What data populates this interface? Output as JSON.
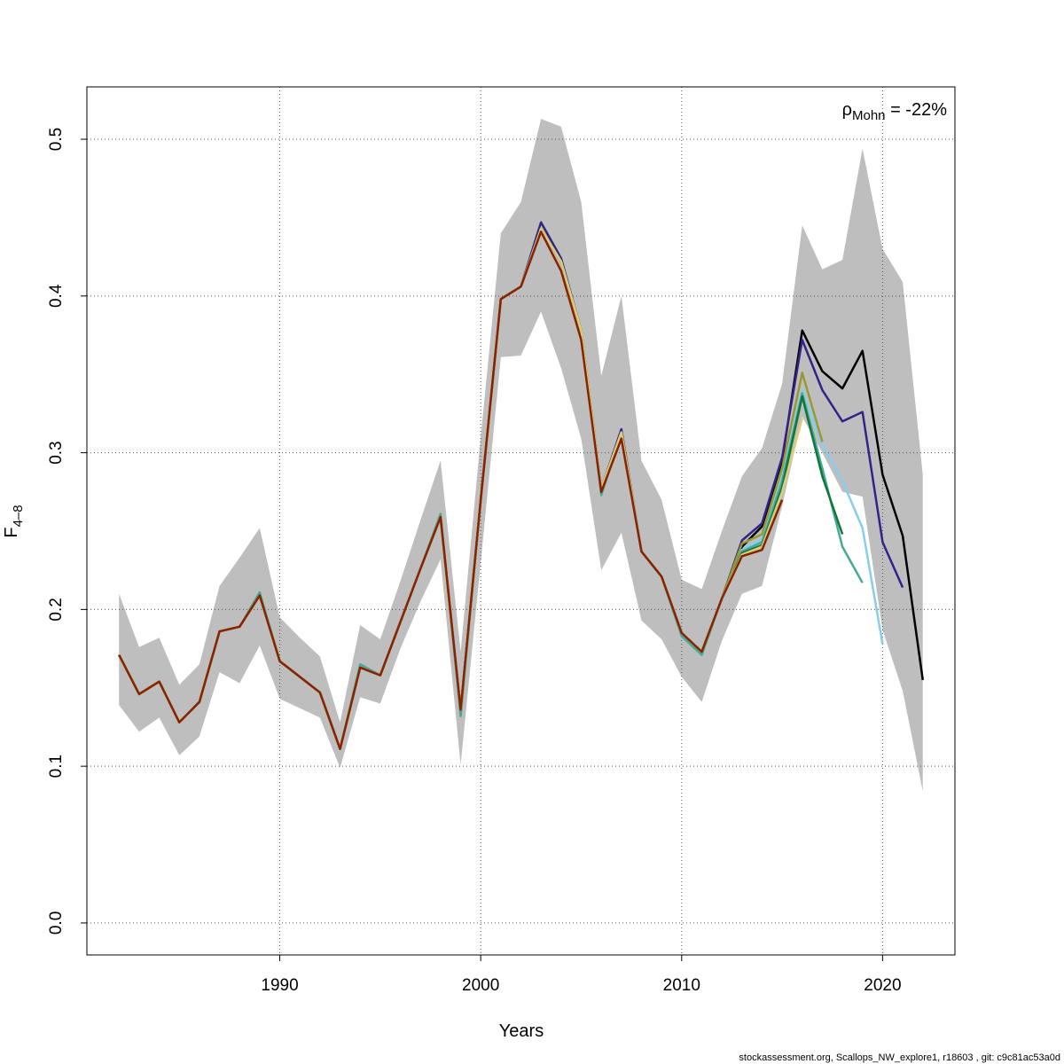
{
  "chart_data": {
    "type": "line",
    "xlabel": "Years",
    "ylabel": {
      "text": "F",
      "subscript": "4–8"
    },
    "annotation": {
      "symbol": "ρ",
      "subscript": "Mohn",
      "text": " = -22%"
    },
    "footer": "stockassessment.org, Scallops_NW_explore1, r18603 , git: c9c81ac53a0d",
    "grid": true,
    "xlim": [
      1980.4,
      2023.6
    ],
    "ylim": [
      -0.0204,
      0.5334
    ],
    "xticks": [
      1990,
      2000,
      2010,
      2020
    ],
    "yticks": [
      {
        "value": 0,
        "label": "0.0"
      },
      0.1,
      0.2,
      0.3,
      0.4,
      0.5
    ],
    "x": [
      1982,
      1983,
      1984,
      1985,
      1986,
      1987,
      1988,
      1989,
      1990,
      1991,
      1992,
      1993,
      1994,
      1995,
      1996,
      1997,
      1998,
      1999,
      2000,
      2001,
      2002,
      2003,
      2004,
      2005,
      2006,
      2007,
      2008,
      2009,
      2010,
      2011,
      2012,
      2013,
      2014,
      2015,
      2016,
      2017,
      2018,
      2019,
      2020,
      2021,
      2022
    ],
    "band": {
      "color": "#bebebe",
      "upper": [
        0.21,
        0.176,
        0.182,
        0.152,
        0.165,
        0.215,
        0.233,
        0.252,
        0.195,
        0.182,
        0.17,
        0.128,
        0.19,
        0.181,
        0.218,
        0.257,
        0.295,
        0.173,
        0.31,
        0.44,
        0.46,
        0.513,
        0.508,
        0.46,
        0.349,
        0.4,
        0.295,
        0.27,
        0.219,
        0.213,
        0.25,
        0.285,
        0.303,
        0.344,
        0.445,
        0.417,
        0.423,
        0.494,
        0.43,
        0.409,
        0.286
      ],
      "lower": [
        0.139,
        0.122,
        0.131,
        0.107,
        0.119,
        0.16,
        0.153,
        0.177,
        0.143,
        0.137,
        0.131,
        0.099,
        0.144,
        0.14,
        0.175,
        0.205,
        0.232,
        0.101,
        0.23,
        0.361,
        0.362,
        0.39,
        0.354,
        0.309,
        0.225,
        0.249,
        0.193,
        0.181,
        0.157,
        0.141,
        0.18,
        0.21,
        0.215,
        0.266,
        0.323,
        0.3,
        0.275,
        0.272,
        0.187,
        0.148,
        0.084
      ]
    },
    "series": [
      {
        "color": "#000000",
        "values": [
          0.171,
          0.146,
          0.154,
          0.128,
          0.141,
          0.186,
          0.189,
          0.209,
          0.167,
          0.157,
          0.147,
          0.111,
          0.163,
          0.158,
          0.192,
          0.226,
          0.259,
          0.136,
          0.27,
          0.398,
          0.406,
          0.443,
          0.422,
          0.378,
          0.277,
          0.313,
          0.237,
          0.221,
          0.185,
          0.173,
          0.207,
          0.24,
          0.253,
          0.295,
          0.378,
          0.352,
          0.341,
          0.365,
          0.286,
          0.247,
          0.155
        ]
      },
      {
        "color": "#332288",
        "values": [
          0.171,
          0.146,
          0.154,
          0.128,
          0.141,
          0.186,
          0.189,
          0.209,
          0.167,
          0.157,
          0.147,
          0.111,
          0.163,
          0.158,
          0.192,
          0.226,
          0.259,
          0.136,
          0.27,
          0.398,
          0.406,
          0.447,
          0.424,
          0.378,
          0.277,
          0.315,
          0.237,
          0.221,
          0.185,
          0.173,
          0.207,
          0.244,
          0.255,
          0.297,
          0.372,
          0.34,
          0.32,
          0.326,
          0.243,
          0.214,
          null
        ]
      },
      {
        "color": "#88ccee",
        "values": [
          0.171,
          0.146,
          0.154,
          0.128,
          0.141,
          0.186,
          0.189,
          0.209,
          0.167,
          0.157,
          0.147,
          0.111,
          0.163,
          0.158,
          0.192,
          0.226,
          0.259,
          0.136,
          0.27,
          0.398,
          0.406,
          0.443,
          0.422,
          0.378,
          0.277,
          0.313,
          0.237,
          0.221,
          0.185,
          0.173,
          0.207,
          0.238,
          0.245,
          0.285,
          0.34,
          0.305,
          0.282,
          0.252,
          0.178,
          null,
          null
        ]
      },
      {
        "color": "#44aa99",
        "values": [
          0.171,
          0.146,
          0.154,
          0.128,
          0.141,
          0.186,
          0.189,
          0.211,
          0.167,
          0.157,
          0.147,
          0.111,
          0.165,
          0.158,
          0.192,
          0.226,
          0.261,
          0.132,
          0.27,
          0.398,
          0.406,
          0.443,
          0.422,
          0.378,
          0.273,
          0.313,
          0.237,
          0.221,
          0.183,
          0.171,
          0.207,
          0.237,
          0.243,
          0.282,
          0.338,
          0.29,
          0.24,
          0.217,
          null,
          null,
          null
        ]
      },
      {
        "color": "#117733",
        "values": [
          0.171,
          0.146,
          0.154,
          0.128,
          0.141,
          0.186,
          0.189,
          0.209,
          0.167,
          0.157,
          0.147,
          0.111,
          0.163,
          0.158,
          0.192,
          0.226,
          0.259,
          0.136,
          0.27,
          0.398,
          0.406,
          0.443,
          0.422,
          0.378,
          0.277,
          0.313,
          0.237,
          0.221,
          0.185,
          0.173,
          0.207,
          0.236,
          0.241,
          0.278,
          0.336,
          0.285,
          0.248,
          null,
          null,
          null,
          null
        ]
      },
      {
        "color": "#999933",
        "values": [
          0.171,
          0.146,
          0.154,
          0.128,
          0.141,
          0.186,
          0.189,
          0.209,
          0.167,
          0.157,
          0.147,
          0.111,
          0.163,
          0.158,
          0.192,
          0.226,
          0.259,
          0.136,
          0.27,
          0.398,
          0.406,
          0.443,
          0.422,
          0.378,
          0.277,
          0.313,
          0.237,
          0.221,
          0.185,
          0.173,
          0.207,
          0.242,
          0.248,
          0.29,
          0.351,
          0.307,
          null,
          null,
          null,
          null,
          null
        ]
      },
      {
        "color": "#ddcc77",
        "values": [
          0.171,
          0.146,
          0.154,
          0.128,
          0.141,
          0.186,
          0.189,
          0.209,
          0.167,
          0.157,
          0.147,
          0.111,
          0.163,
          0.158,
          0.192,
          0.226,
          0.259,
          0.136,
          0.27,
          0.398,
          0.406,
          0.443,
          0.422,
          0.378,
          0.277,
          0.313,
          0.237,
          0.221,
          0.185,
          0.173,
          0.207,
          0.235,
          0.24,
          0.275,
          0.322,
          null,
          null,
          null,
          null,
          null,
          null
        ]
      },
      {
        "color": "#882200",
        "values": [
          0.171,
          0.146,
          0.154,
          0.128,
          0.141,
          0.186,
          0.189,
          0.209,
          0.167,
          0.157,
          0.147,
          0.111,
          0.163,
          0.158,
          0.192,
          0.226,
          0.259,
          0.136,
          0.27,
          0.398,
          0.406,
          0.441,
          0.416,
          0.372,
          0.275,
          0.309,
          0.237,
          0.221,
          0.185,
          0.173,
          0.207,
          0.234,
          0.238,
          0.27,
          null,
          null,
          null,
          null,
          null,
          null,
          null
        ]
      }
    ]
  }
}
